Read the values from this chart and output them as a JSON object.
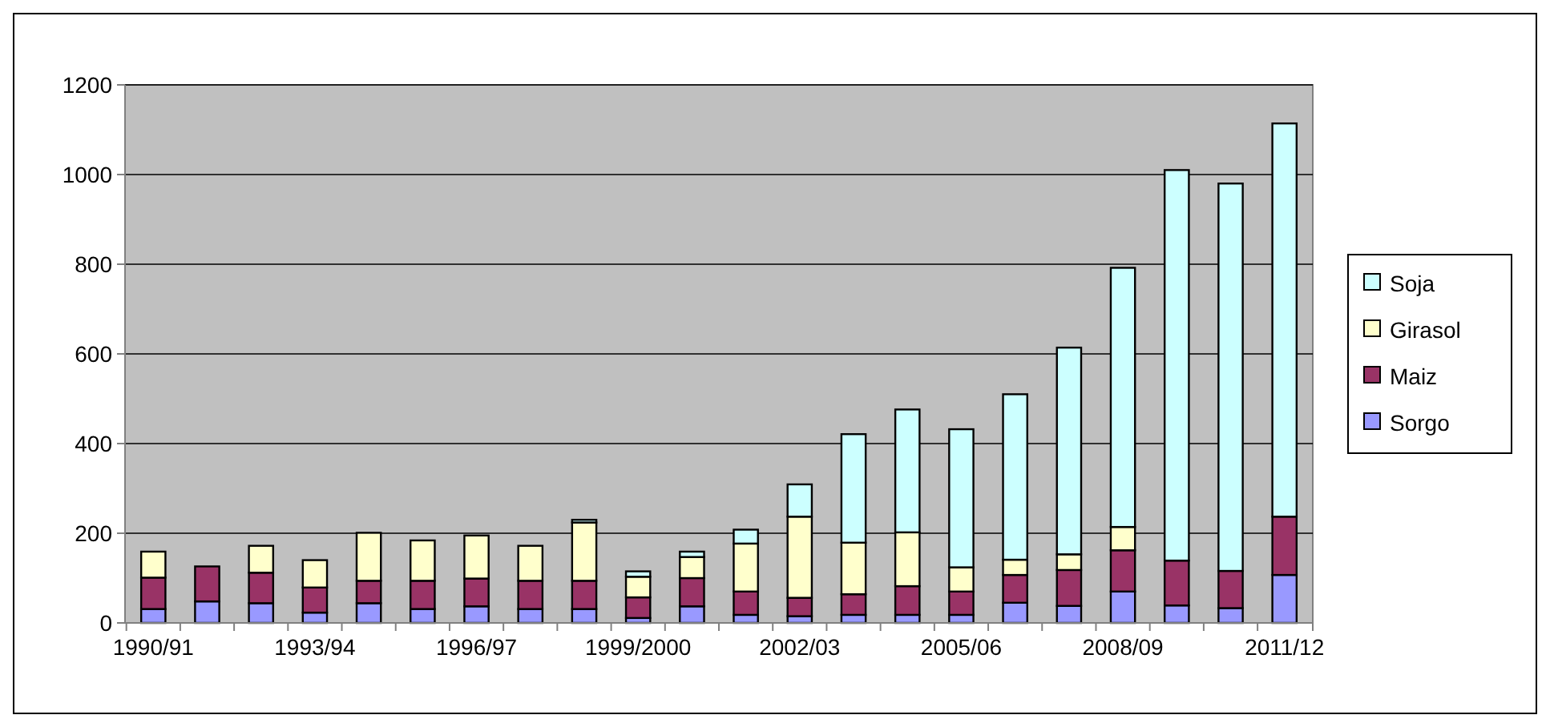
{
  "chart_data": {
    "type": "bar",
    "stacked": true,
    "categories": [
      "1990/91",
      null,
      null,
      "1993/94",
      null,
      null,
      "1996/97",
      null,
      null,
      "1999/2000",
      null,
      null,
      "2002/03",
      null,
      null,
      "2005/06",
      null,
      null,
      "2008/09",
      null,
      null,
      "2011/12"
    ],
    "series": [
      {
        "name": "Sorgo",
        "color": "#9999ff",
        "values": [
          31,
          48,
          44,
          23,
          44,
          31,
          37,
          31,
          31,
          11,
          37,
          18,
          15,
          18,
          18,
          18,
          45,
          38,
          70,
          39,
          33,
          107
        ]
      },
      {
        "name": "Maiz",
        "color": "#993366",
        "values": [
          70,
          78,
          68,
          56,
          50,
          63,
          62,
          63,
          63,
          46,
          63,
          52,
          41,
          46,
          64,
          52,
          62,
          80,
          92,
          100,
          83,
          130
        ]
      },
      {
        "name": "Girasol",
        "color": "#ffffcc",
        "values": [
          58,
          0,
          60,
          61,
          107,
          90,
          96,
          78,
          130,
          46,
          47,
          107,
          181,
          115,
          120,
          54,
          34,
          35,
          52,
          0,
          0,
          0
        ]
      },
      {
        "name": "Soja",
        "color": "#ccffff",
        "values": [
          0,
          0,
          0,
          0,
          0,
          0,
          0,
          0,
          6,
          12,
          12,
          31,
          72,
          242,
          274,
          308,
          369,
          461,
          578,
          871,
          864,
          877
        ]
      }
    ],
    "ylim": [
      0,
      1200
    ],
    "yticks": [
      0,
      200,
      400,
      600,
      800,
      1000,
      1200
    ],
    "grid": "y",
    "legend": "right"
  }
}
